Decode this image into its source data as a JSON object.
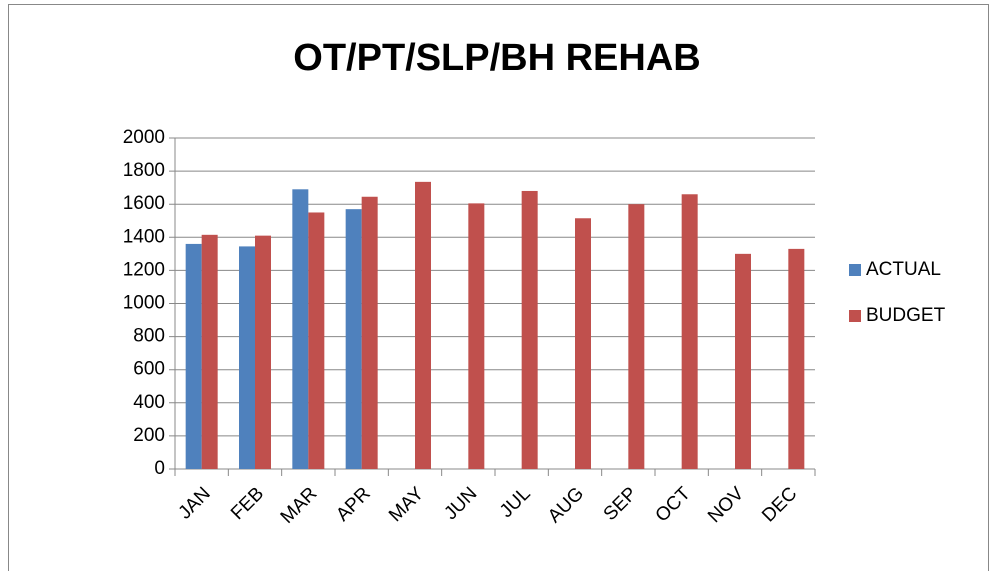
{
  "chart_data": {
    "type": "bar",
    "title": "OT/PT/SLP/BH REHAB",
    "categories": [
      "JAN",
      "FEB",
      "MAR",
      "APR",
      "MAY",
      "JUN",
      "JUL",
      "AUG",
      "SEP",
      "OCT",
      "NOV",
      "DEC"
    ],
    "series": [
      {
        "name": "ACTUAL",
        "color": "#4f81bd",
        "values": [
          1360,
          1345,
          1690,
          1570,
          null,
          null,
          null,
          null,
          null,
          null,
          null,
          null
        ]
      },
      {
        "name": "BUDGET",
        "color": "#c0504d",
        "values": [
          1415,
          1410,
          1550,
          1645,
          1735,
          1605,
          1680,
          1515,
          1600,
          1660,
          1300,
          1330
        ]
      }
    ],
    "ylim": [
      0,
      2000
    ],
    "yticks": [
      0,
      200,
      400,
      600,
      800,
      1000,
      1200,
      1400,
      1600,
      1800,
      2000
    ],
    "grid": true,
    "legend": "right"
  }
}
